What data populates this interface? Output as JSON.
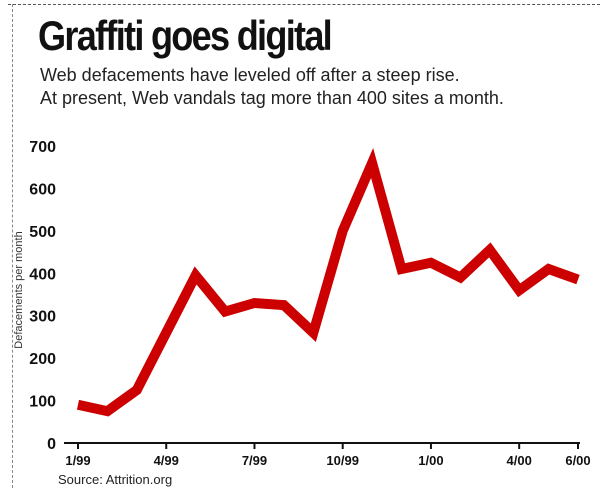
{
  "chart_data": {
    "type": "line",
    "title": "Graffiti goes digital",
    "subtitle": [
      "Web defacements have leveled off after a steep rise.",
      "At present, Web vandals tag more than 400 sites a month."
    ],
    "ylabel": "Defacements per month",
    "xlabel": "",
    "source": "Source: Attrition.org",
    "ylim": [
      0,
      700
    ],
    "yticks": [
      "0",
      "100",
      "200",
      "300",
      "400",
      "500",
      "600",
      "700"
    ],
    "xticks": [
      "1/99",
      "4/99",
      "7/99",
      "10/99",
      "1/00",
      "4/00",
      "6/00"
    ],
    "series": [
      {
        "color": "#cc0000",
        "x": [
          "1/99",
          "2/99",
          "3/99",
          "4/99",
          "5/99",
          "6/99",
          "7/99",
          "8/99",
          "9/99",
          "10/99",
          "11/99",
          "12/99",
          "1/00",
          "2/00",
          "3/00",
          "4/00",
          "5/00",
          "6/00"
        ],
        "values": [
          90,
          75,
          125,
          260,
          395,
          310,
          330,
          325,
          260,
          500,
          660,
          410,
          425,
          390,
          455,
          360,
          410,
          385
        ]
      }
    ]
  }
}
